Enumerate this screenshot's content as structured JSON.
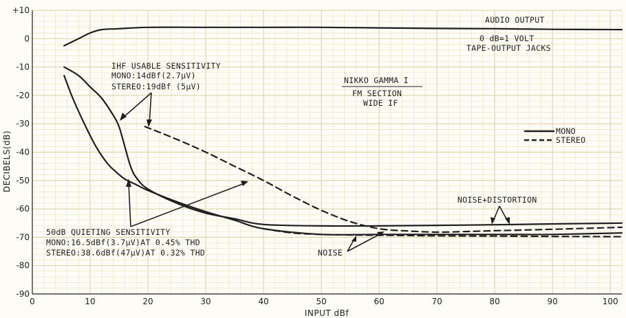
{
  "chart_data": {
    "type": "line",
    "title": "",
    "xlabel": "INPUT dBf",
    "ylabel": "DECIBELS(dB)",
    "xlim": [
      0,
      102
    ],
    "ylim": [
      -90,
      10
    ],
    "x_ticks": [
      "0",
      "10",
      "20",
      "30",
      "40",
      "50",
      "60",
      "70",
      "80",
      "90",
      "100"
    ],
    "y_ticks": [
      "+10",
      "0",
      "-10",
      "-20",
      "-30",
      "-40",
      "-50",
      "-60",
      "-70",
      "-80",
      "-90"
    ],
    "grid": true,
    "legend": {
      "position": "right",
      "entries": [
        {
          "label": "MONO",
          "style": "solid"
        },
        {
          "label": "STEREO",
          "style": "dashed"
        }
      ]
    },
    "series": [
      {
        "style": "solid",
        "x": [
          5.5,
          8,
          10,
          12,
          15,
          20,
          30,
          40,
          50,
          60,
          70,
          80,
          90,
          102
        ],
        "y": [
          -2.5,
          0,
          2,
          3.2,
          3.5,
          4,
          4,
          4,
          4,
          3.8,
          3.6,
          3.5,
          3.3,
          3.2
        ]
      },
      {
        "style": "solid",
        "x": [
          5.5,
          8,
          10,
          12,
          14,
          15,
          16,
          17,
          18,
          20,
          25,
          30,
          35,
          40,
          50,
          60,
          70,
          80,
          90,
          102
        ],
        "y": [
          -10,
          -13,
          -17,
          -21,
          -27,
          -31,
          -38,
          -45,
          -49,
          -53,
          -58,
          -61.5,
          -63.5,
          -65.5,
          -66,
          -66,
          -65.8,
          -65.6,
          -65.3,
          -65
        ]
      },
      {
        "style": "solid",
        "x": [
          5.5,
          7,
          9,
          11,
          13,
          14.5,
          16,
          18,
          20,
          25,
          30,
          35,
          40,
          50,
          60,
          70,
          80,
          90,
          102
        ],
        "y": [
          -13,
          -21,
          -30,
          -38,
          -44,
          -47,
          -49.5,
          -51.5,
          -53.5,
          -57.5,
          -61,
          -64,
          -67,
          -69,
          -69,
          -69,
          -69,
          -69,
          -68.5
        ]
      },
      {
        "style": "dashed",
        "x": [
          19.5,
          25,
          30,
          35,
          40,
          45,
          50,
          55,
          60,
          65,
          70,
          75,
          80,
          90,
          102
        ],
        "y": [
          -31,
          -35.5,
          -40,
          -45,
          -50,
          -55.5,
          -60.5,
          -64.5,
          -67,
          -67.8,
          -68.2,
          -68,
          -67.7,
          -67.2,
          -66.5
        ]
      },
      {
        "style": "dashed",
        "x": [
          40,
          45,
          50,
          55,
          60,
          65,
          70,
          80,
          90,
          102
        ],
        "y": [
          -67,
          -68.5,
          -69,
          -69.2,
          -69.3,
          -69.4,
          -69.5,
          -69.6,
          -69.7,
          -69.8
        ]
      }
    ],
    "annotations": {
      "audio_output": "AUDIO OUTPUT",
      "ref_line1": "0 dB=1 VOLT",
      "ref_line2": "TAPE-OUTPUT JACKS",
      "title_line1": "NIKKO GAMMA I",
      "title_line2": "FM SECTION",
      "title_line3": "WIDE IF",
      "ihf_line1": "IHF USABLE SENSITIVITY",
      "ihf_line2": "MONO:14dBf(2.7μV)",
      "ihf_line3": "STEREO:19dBf (5μV)",
      "quiet_line1": "50dB QUIETING SENSITIVITY",
      "quiet_line2": "MONO:16.5dBf(3.7μV)AT 0.45% THD",
      "quiet_line3": "STEREO:38.6dBf(47μV)AT 0.32% THD",
      "noise_dist": "NOISE+DISTORTION",
      "noise": "NOISE"
    }
  }
}
